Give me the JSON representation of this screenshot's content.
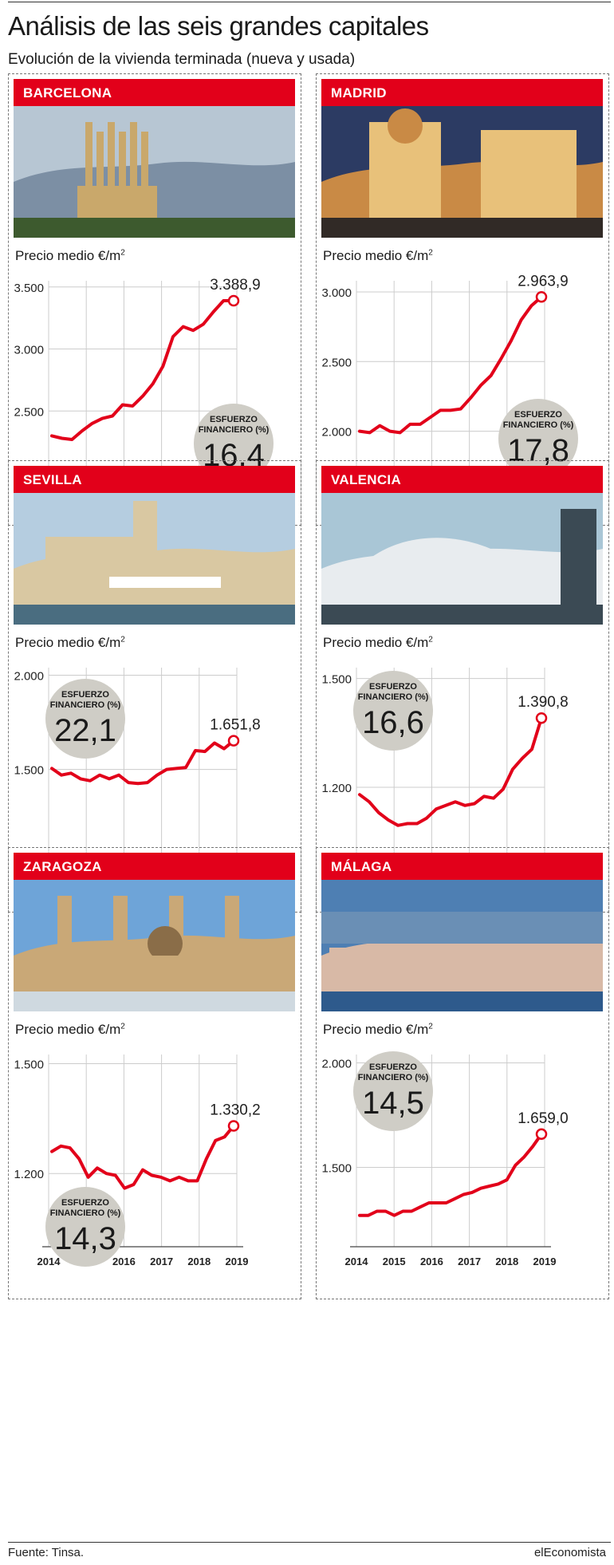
{
  "page": {
    "title": "Análisis de las seis grandes capitales",
    "subtitle": "Evolución de la vivienda terminada (nueva y usada)",
    "source": "Fuente: Tinsa.",
    "brand": "elEconomista"
  },
  "colors": {
    "accent": "#e2001a",
    "circle": "#cfcdc6",
    "grid": "#cccccc"
  },
  "years": [
    "2014",
    "2015",
    "2016",
    "2017",
    "2018",
    "2019"
  ],
  "price_label": "Precio medio €/m",
  "price_label_sup": "2",
  "effort_label_1": "ESFUERZO",
  "effort_label_2": "FINANCIERO (%)",
  "chart_data": [
    {
      "type": "line",
      "city": "BARCELONA",
      "photo": "sagrada-familia-photo",
      "yticks": [
        2500,
        3000,
        3500
      ],
      "yticks_text": [
        "2.500",
        "3.000",
        "3.500"
      ],
      "ylim": [
        2000,
        3550
      ],
      "last_label": "3.388,9",
      "effort": "16,4",
      "values": [
        2300,
        2280,
        2270,
        2340,
        2400,
        2440,
        2460,
        2550,
        2540,
        2620,
        2720,
        2860,
        3100,
        3180,
        3150,
        3200,
        3300,
        3389,
        3389
      ]
    },
    {
      "type": "line",
      "city": "MADRID",
      "photo": "gran-via-photo",
      "yticks": [
        2000,
        2500,
        3000
      ],
      "yticks_text": [
        "2.000",
        "2.500",
        "3.000"
      ],
      "ylim": [
        1700,
        3080
      ],
      "last_label": "2.963,9",
      "effort": "17,8",
      "values": [
        2000,
        1990,
        2040,
        2000,
        1990,
        2050,
        2050,
        2100,
        2150,
        2150,
        2160,
        2240,
        2330,
        2400,
        2520,
        2650,
        2800,
        2900,
        2964
      ]
    },
    {
      "type": "line",
      "city": "SEVILLA",
      "photo": "torre-del-oro-photo",
      "yticks": [
        1500,
        2000
      ],
      "yticks_text": [
        "1.500",
        "2.000"
      ],
      "ylim": [
        1020,
        2040
      ],
      "last_label": "1.651,8",
      "effort": "22,1",
      "values": [
        1505,
        1470,
        1480,
        1450,
        1440,
        1470,
        1450,
        1470,
        1430,
        1425,
        1430,
        1470,
        1500,
        1505,
        1510,
        1600,
        1595,
        1640,
        1610,
        1652
      ]
    },
    {
      "type": "line",
      "city": "VALENCIA",
      "photo": "ciudad-artes-ciencias-photo",
      "yticks": [
        1200,
        1500
      ],
      "yticks_text": [
        "1.200",
        "1.500"
      ],
      "ylim": [
        1000,
        1530
      ],
      "last_label": "1.390,8",
      "effort": "16,6",
      "values": [
        1180,
        1160,
        1130,
        1110,
        1095,
        1100,
        1100,
        1115,
        1140,
        1150,
        1160,
        1150,
        1155,
        1175,
        1170,
        1195,
        1250,
        1280,
        1305,
        1391
      ]
    },
    {
      "type": "line",
      "city": "ZARAGOZA",
      "photo": "basilica-del-pilar-photo",
      "yticks": [
        1200,
        1500
      ],
      "yticks_text": [
        "1.200",
        "1.500"
      ],
      "ylim": [
        1000,
        1525
      ],
      "last_label": "1.330,2",
      "effort": "14,3",
      "values": [
        1260,
        1275,
        1270,
        1240,
        1190,
        1215,
        1200,
        1195,
        1160,
        1170,
        1210,
        1195,
        1190,
        1180,
        1190,
        1180,
        1180,
        1240,
        1290,
        1300,
        1330
      ]
    },
    {
      "type": "line",
      "city": "MÁLAGA",
      "photo": "malaga-port-photo",
      "yticks": [
        1500,
        2000
      ],
      "yticks_text": [
        "1.500",
        "2.000"
      ],
      "ylim": [
        1120,
        2040
      ],
      "last_label": "1.659,0",
      "effort": "14,5",
      "values": [
        1270,
        1270,
        1290,
        1290,
        1270,
        1290,
        1290,
        1310,
        1330,
        1330,
        1330,
        1350,
        1370,
        1380,
        1400,
        1410,
        1420,
        1440,
        1510,
        1550,
        1600,
        1659
      ]
    }
  ]
}
